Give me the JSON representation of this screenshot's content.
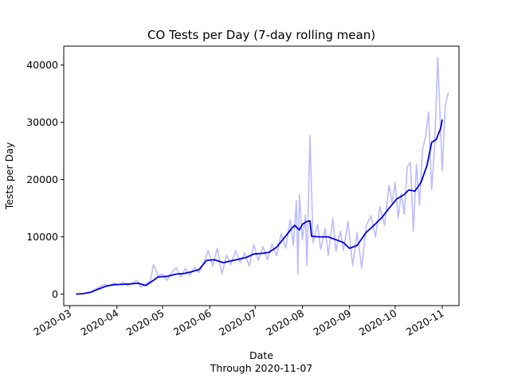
{
  "chart_data": {
    "type": "line",
    "title": "CO Tests per Day (7-day rolling mean)",
    "xlabel": "Date",
    "xlabel_sub": "Through 2020-11-07",
    "ylabel": "Tests per Day",
    "xlim": [
      "2020-02-26",
      "2020-11-12"
    ],
    "ylim": [
      -2000,
      43300
    ],
    "x_ticks": [
      "2020-03",
      "2020-04",
      "2020-05",
      "2020-06",
      "2020-07",
      "2020-08",
      "2020-09",
      "2020-10",
      "2020-11"
    ],
    "y_ticks": [
      0,
      10000,
      20000,
      30000,
      40000
    ],
    "grid": false,
    "series": [
      {
        "role": "daily",
        "color": "#bbbbff",
        "points": [
          [
            "2020-03-05",
            0
          ],
          [
            "2020-03-10",
            100
          ],
          [
            "2020-03-15",
            400
          ],
          [
            "2020-03-18",
            900
          ],
          [
            "2020-03-21",
            1300
          ],
          [
            "2020-03-24",
            1700
          ],
          [
            "2020-03-27",
            1500
          ],
          [
            "2020-03-30",
            1900
          ],
          [
            "2020-04-02",
            1600
          ],
          [
            "2020-04-05",
            2100
          ],
          [
            "2020-04-08",
            1500
          ],
          [
            "2020-04-11",
            1900
          ],
          [
            "2020-04-14",
            2400
          ],
          [
            "2020-04-17",
            1200
          ],
          [
            "2020-04-20",
            1800
          ],
          [
            "2020-04-23",
            2300
          ],
          [
            "2020-04-25",
            5200
          ],
          [
            "2020-04-28",
            3200
          ],
          [
            "2020-05-01",
            3500
          ],
          [
            "2020-05-04",
            2400
          ],
          [
            "2020-05-07",
            3800
          ],
          [
            "2020-05-10",
            4600
          ],
          [
            "2020-05-13",
            3000
          ],
          [
            "2020-05-16",
            4500
          ],
          [
            "2020-05-19",
            3300
          ],
          [
            "2020-05-22",
            4700
          ],
          [
            "2020-05-25",
            3800
          ],
          [
            "2020-05-28",
            5400
          ],
          [
            "2020-05-31",
            7600
          ],
          [
            "2020-06-03",
            4900
          ],
          [
            "2020-06-06",
            8000
          ],
          [
            "2020-06-09",
            3500
          ],
          [
            "2020-06-12",
            6800
          ],
          [
            "2020-06-15",
            5200
          ],
          [
            "2020-06-18",
            7600
          ],
          [
            "2020-06-21",
            5500
          ],
          [
            "2020-06-24",
            7200
          ],
          [
            "2020-06-27",
            4900
          ],
          [
            "2020-06-30",
            8600
          ],
          [
            "2020-07-03",
            5900
          ],
          [
            "2020-07-06",
            8300
          ],
          [
            "2020-07-09",
            6000
          ],
          [
            "2020-07-12",
            8700
          ],
          [
            "2020-07-15",
            6700
          ],
          [
            "2020-07-18",
            10500
          ],
          [
            "2020-07-21",
            8000
          ],
          [
            "2020-07-24",
            13000
          ],
          [
            "2020-07-26",
            8500
          ],
          [
            "2020-07-28",
            16300
          ],
          [
            "2020-07-29",
            3500
          ],
          [
            "2020-07-30",
            17400
          ],
          [
            "2020-08-01",
            9500
          ],
          [
            "2020-08-03",
            13800
          ],
          [
            "2020-08-04",
            5000
          ],
          [
            "2020-08-06",
            27700
          ],
          [
            "2020-08-08",
            9000
          ],
          [
            "2020-08-11",
            12200
          ],
          [
            "2020-08-13",
            7800
          ],
          [
            "2020-08-16",
            11500
          ],
          [
            "2020-08-18",
            6800
          ],
          [
            "2020-08-21",
            13200
          ],
          [
            "2020-08-23",
            7500
          ],
          [
            "2020-08-26",
            11000
          ],
          [
            "2020-08-28",
            7700
          ],
          [
            "2020-08-31",
            12700
          ],
          [
            "2020-09-03",
            5000
          ],
          [
            "2020-09-06",
            10800
          ],
          [
            "2020-09-09",
            4500
          ],
          [
            "2020-09-12",
            12000
          ],
          [
            "2020-09-15",
            13700
          ],
          [
            "2020-09-18",
            10000
          ],
          [
            "2020-09-21",
            15300
          ],
          [
            "2020-09-24",
            12000
          ],
          [
            "2020-09-27",
            19000
          ],
          [
            "2020-09-29",
            16000
          ],
          [
            "2020-10-01",
            19500
          ],
          [
            "2020-10-03",
            13300
          ],
          [
            "2020-10-05",
            17600
          ],
          [
            "2020-10-07",
            14000
          ],
          [
            "2020-10-09",
            22200
          ],
          [
            "2020-10-11",
            23000
          ],
          [
            "2020-10-13",
            11000
          ],
          [
            "2020-10-15",
            22700
          ],
          [
            "2020-10-17",
            15500
          ],
          [
            "2020-10-19",
            25300
          ],
          [
            "2020-10-21",
            27400
          ],
          [
            "2020-10-23",
            31800
          ],
          [
            "2020-10-25",
            18200
          ],
          [
            "2020-10-27",
            26000
          ],
          [
            "2020-10-29",
            41300
          ],
          [
            "2020-11-01",
            21500
          ],
          [
            "2020-11-03",
            33000
          ],
          [
            "2020-11-05",
            35200
          ]
        ]
      },
      {
        "role": "rolling-mean",
        "color": "#0000dd",
        "points": [
          [
            "2020-03-05",
            0
          ],
          [
            "2020-03-10",
            100
          ],
          [
            "2020-03-15",
            350
          ],
          [
            "2020-03-20",
            900
          ],
          [
            "2020-03-25",
            1400
          ],
          [
            "2020-03-30",
            1650
          ],
          [
            "2020-04-04",
            1700
          ],
          [
            "2020-04-10",
            1800
          ],
          [
            "2020-04-15",
            1900
          ],
          [
            "2020-04-20",
            1500
          ],
          [
            "2020-04-25",
            2400
          ],
          [
            "2020-04-28",
            3000
          ],
          [
            "2020-05-04",
            3100
          ],
          [
            "2020-05-10",
            3500
          ],
          [
            "2020-05-15",
            3600
          ],
          [
            "2020-05-20",
            3900
          ],
          [
            "2020-05-25",
            4300
          ],
          [
            "2020-05-30",
            5900
          ],
          [
            "2020-06-04",
            6000
          ],
          [
            "2020-06-10",
            5500
          ],
          [
            "2020-06-15",
            5800
          ],
          [
            "2020-06-20",
            6100
          ],
          [
            "2020-06-25",
            6400
          ],
          [
            "2020-06-30",
            7000
          ],
          [
            "2020-07-05",
            7100
          ],
          [
            "2020-07-10",
            7300
          ],
          [
            "2020-07-15",
            8200
          ],
          [
            "2020-07-20",
            9800
          ],
          [
            "2020-07-25",
            11500
          ],
          [
            "2020-07-27",
            12000
          ],
          [
            "2020-07-30",
            11200
          ],
          [
            "2020-08-01",
            12200
          ],
          [
            "2020-08-04",
            12700
          ],
          [
            "2020-08-06",
            12800
          ],
          [
            "2020-08-07",
            10100
          ],
          [
            "2020-08-12",
            10000
          ],
          [
            "2020-08-18",
            10000
          ],
          [
            "2020-08-23",
            9500
          ],
          [
            "2020-08-28",
            9000
          ],
          [
            "2020-09-01",
            8000
          ],
          [
            "2020-09-06",
            8500
          ],
          [
            "2020-09-12",
            10800
          ],
          [
            "2020-09-17",
            12000
          ],
          [
            "2020-09-22",
            13300
          ],
          [
            "2020-09-27",
            15000
          ],
          [
            "2020-10-02",
            16600
          ],
          [
            "2020-10-07",
            17400
          ],
          [
            "2020-10-10",
            18200
          ],
          [
            "2020-10-14",
            18000
          ],
          [
            "2020-10-18",
            19500
          ],
          [
            "2020-10-22",
            22500
          ],
          [
            "2020-10-25",
            26500
          ],
          [
            "2020-10-28",
            27000
          ],
          [
            "2020-10-31",
            29000
          ],
          [
            "2020-11-01",
            30500
          ]
        ]
      }
    ]
  }
}
